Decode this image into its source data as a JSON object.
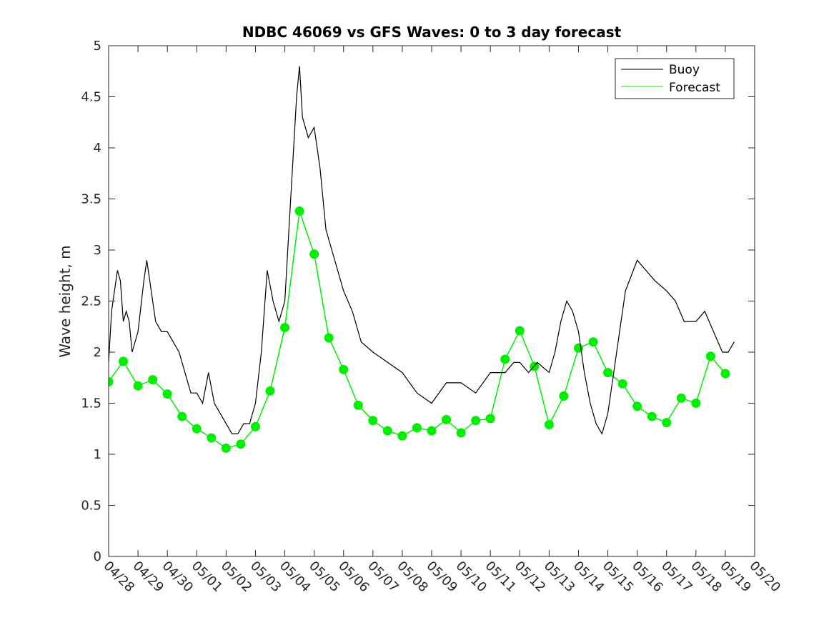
{
  "chart_data": {
    "type": "line",
    "title": "NDBC 46069 vs GFS Waves: 0 to 3 day forecast",
    "xlabel": "",
    "ylabel": "Wave height, m",
    "xlim": [
      0,
      22
    ],
    "ylim": [
      0,
      5
    ],
    "y_ticks": [
      0,
      0.5,
      1,
      1.5,
      2,
      2.5,
      3,
      3.5,
      4,
      4.5,
      5
    ],
    "y_tick_labels": [
      "0",
      "0.5",
      "1",
      "1.5",
      "2",
      "2.5",
      "3",
      "3.5",
      "4",
      "4.5",
      "5"
    ],
    "x_ticks": [
      0,
      1,
      2,
      3,
      4,
      5,
      6,
      7,
      8,
      9,
      10,
      11,
      12,
      13,
      14,
      15,
      16,
      17,
      18,
      19,
      20,
      21,
      22
    ],
    "x_tick_labels": [
      "04/28",
      "04/29",
      "04/30",
      "05/01",
      "05/02",
      "05/03",
      "05/04",
      "05/05",
      "05/06",
      "05/07",
      "05/08",
      "05/09",
      "05/10",
      "05/11",
      "05/12",
      "05/13",
      "05/14",
      "05/15",
      "05/16",
      "05/17",
      "05/18",
      "05/19",
      "05/20"
    ],
    "x_unit": "days since 04/28",
    "legend": {
      "position": "top-right",
      "entries": [
        {
          "label": "Buoy",
          "color": "#000000"
        },
        {
          "label": "Forecast",
          "color": "#00ee00"
        }
      ]
    },
    "grid": false,
    "series": [
      {
        "name": "Buoy",
        "color": "#000000",
        "x": [
          0,
          0.1,
          0.2,
          0.3,
          0.4,
          0.5,
          0.6,
          0.7,
          0.8,
          1.0,
          1.2,
          1.3,
          1.5,
          1.6,
          1.8,
          2.0,
          2.2,
          2.4,
          2.6,
          2.8,
          3.0,
          3.2,
          3.4,
          3.6,
          3.8,
          4.0,
          4.2,
          4.4,
          4.6,
          4.8,
          5.0,
          5.2,
          5.4,
          5.6,
          5.8,
          6.0,
          6.2,
          6.4,
          6.5,
          6.6,
          6.8,
          7.0,
          7.2,
          7.4,
          7.6,
          7.8,
          8.0,
          8.3,
          8.6,
          9.0,
          9.5,
          10.0,
          10.5,
          11.0,
          11.5,
          12.0,
          12.5,
          13.0,
          13.3,
          13.5,
          13.8,
          14.0,
          14.3,
          14.6,
          15.0,
          15.2,
          15.4,
          15.6,
          15.8,
          16.0,
          16.2,
          16.4,
          16.6,
          16.8,
          17.0,
          17.3,
          17.6,
          18.0,
          18.3,
          18.6,
          19.0,
          19.3,
          19.6,
          20.0,
          20.3,
          20.6,
          20.9,
          21.1,
          21.3
        ],
        "values": [
          1.9,
          2.4,
          2.6,
          2.8,
          2.7,
          2.3,
          2.4,
          2.3,
          2.0,
          2.2,
          2.7,
          2.9,
          2.5,
          2.3,
          2.2,
          2.2,
          2.1,
          2.0,
          1.8,
          1.6,
          1.6,
          1.5,
          1.8,
          1.5,
          1.4,
          1.3,
          1.2,
          1.2,
          1.3,
          1.3,
          1.5,
          2.0,
          2.8,
          2.5,
          2.3,
          2.5,
          3.5,
          4.5,
          4.8,
          4.3,
          4.1,
          4.2,
          3.8,
          3.2,
          3.0,
          2.8,
          2.6,
          2.4,
          2.1,
          2.0,
          1.9,
          1.8,
          1.6,
          1.5,
          1.7,
          1.7,
          1.6,
          1.8,
          1.8,
          1.8,
          1.9,
          1.9,
          1.8,
          1.9,
          1.8,
          2.0,
          2.3,
          2.5,
          2.4,
          2.2,
          1.8,
          1.5,
          1.3,
          1.2,
          1.4,
          2.0,
          2.6,
          2.9,
          2.8,
          2.7,
          2.6,
          2.5,
          2.3,
          2.3,
          2.4,
          2.2,
          2.0,
          2.0,
          2.1
        ]
      },
      {
        "name": "Forecast",
        "color": "#00ee00",
        "x": [
          0,
          0.5,
          1.0,
          1.5,
          2.0,
          2.5,
          3.0,
          3.5,
          4.0,
          4.5,
          5.0,
          5.5,
          6.0,
          6.5,
          7.0,
          7.5,
          8.0,
          8.5,
          9.0,
          9.5,
          10.0,
          10.5,
          11.0,
          11.5,
          12.0,
          12.5,
          13.0,
          13.5,
          14.0,
          14.5,
          15.0,
          15.5,
          16.0,
          16.5,
          17.0,
          17.5,
          18.0,
          18.5,
          19.0,
          19.5,
          20.0,
          20.5,
          21.0
        ],
        "values": [
          1.71,
          1.91,
          1.67,
          1.73,
          1.59,
          1.37,
          1.25,
          1.16,
          1.06,
          1.1,
          1.27,
          1.62,
          2.24,
          3.38,
          2.96,
          2.14,
          1.83,
          1.48,
          1.33,
          1.23,
          1.18,
          1.26,
          1.23,
          1.34,
          1.21,
          1.33,
          1.35,
          1.93,
          2.21,
          1.86,
          1.29,
          1.57,
          2.04,
          2.1,
          1.8,
          1.69,
          1.47,
          1.37,
          1.31,
          1.55,
          1.5,
          1.96,
          1.79
        ]
      }
    ]
  }
}
